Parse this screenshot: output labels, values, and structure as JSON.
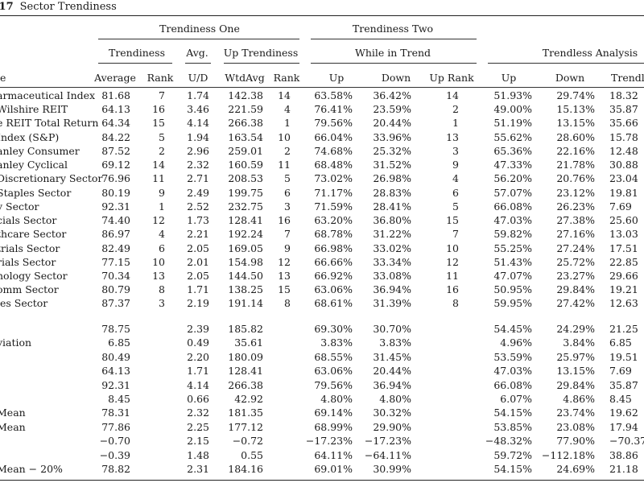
{
  "caption": {
    "number": ".17",
    "title": "Sector Trendiness"
  },
  "groups": {
    "one": "Trendiness One",
    "two": "Trendiness Two",
    "three": "Trendless Analysis"
  },
  "subgroups": {
    "trendiness": "Trendiness",
    "avg": "Avg.",
    "up_trendiness": "Up Trendiness",
    "while_in_trend": "While in Trend"
  },
  "columns": {
    "name": "e",
    "average": "Average",
    "rank": "Rank",
    "ud": "U/D",
    "wtdavg": "WtdAvg",
    "rank2": "Rank",
    "up": "Up",
    "down": "Down",
    "up_rank": "Up Rank",
    "up2": "Up",
    "down2": "Down",
    "trendless": "Trendle"
  },
  "rows": [
    [
      "armaceutical Index",
      "81.68",
      "7",
      "1.74",
      "142.38",
      "14",
      "63.58%",
      "36.42%",
      "14",
      "51.93%",
      "29.74%",
      "18.32"
    ],
    [
      "Wilshire REIT",
      "64.13",
      "16",
      "3.46",
      "221.59",
      "4",
      "76.41%",
      "23.59%",
      "2",
      "49.00%",
      "15.13%",
      "35.87"
    ],
    [
      "e REIT Total Return",
      "64.34",
      "15",
      "4.14",
      "266.38",
      "1",
      "79.56%",
      "20.44%",
      "1",
      "51.19%",
      "13.15%",
      "35.66"
    ],
    [
      "Index (S&P)",
      "84.22",
      "5",
      "1.94",
      "163.54",
      "10",
      "66.04%",
      "33.96%",
      "13",
      "55.62%",
      "28.60%",
      "15.78"
    ],
    [
      "anley Consumer",
      "87.52",
      "2",
      "2.96",
      "259.01",
      "2",
      "74.68%",
      "25.32%",
      "3",
      "65.36%",
      "22.16%",
      "12.48"
    ],
    [
      "anley Cyclical",
      "69.12",
      "14",
      "2.32",
      "160.59",
      "11",
      "68.48%",
      "31.52%",
      "9",
      "47.33%",
      "21.78%",
      "30.88"
    ],
    [
      "Discretionary Sector",
      "76.96",
      "11",
      "2.71",
      "208.53",
      "5",
      "73.02%",
      "26.98%",
      "4",
      "56.20%",
      "20.76%",
      "23.04"
    ],
    [
      "Staples Sector",
      "80.19",
      "9",
      "2.49",
      "199.75",
      "6",
      "71.17%",
      "28.83%",
      "6",
      "57.07%",
      "23.12%",
      "19.81"
    ],
    [
      "y Sector",
      "92.31",
      "1",
      "2.52",
      "232.75",
      "3",
      "71.59%",
      "28.41%",
      "5",
      "66.08%",
      "26.23%",
      "7.69"
    ],
    [
      "cials Sector",
      "74.40",
      "12",
      "1.73",
      "128.41",
      "16",
      "63.20%",
      "36.80%",
      "15",
      "47.03%",
      "27.38%",
      "25.60"
    ],
    [
      "thcare Sector",
      "86.97",
      "4",
      "2.21",
      "192.24",
      "7",
      "68.78%",
      "31.22%",
      "7",
      "59.82%",
      "27.16%",
      "13.03"
    ],
    [
      "trials Sector",
      "82.49",
      "6",
      "2.05",
      "169.05",
      "9",
      "66.98%",
      "33.02%",
      "10",
      "55.25%",
      "27.24%",
      "17.51"
    ],
    [
      "rials Sector",
      "77.15",
      "10",
      "2.01",
      "154.98",
      "12",
      "66.66%",
      "33.34%",
      "12",
      "51.43%",
      "25.72%",
      "22.85"
    ],
    [
      "nology Sector",
      "70.34",
      "13",
      "2.05",
      "144.50",
      "13",
      "66.92%",
      "33.08%",
      "11",
      "47.07%",
      "23.27%",
      "29.66"
    ],
    [
      "omm Sector",
      "80.79",
      "8",
      "1.71",
      "138.25",
      "15",
      "63.06%",
      "36.94%",
      "16",
      "50.95%",
      "29.84%",
      "19.21"
    ],
    [
      "ies Sector",
      "87.37",
      "3",
      "2.19",
      "191.14",
      "8",
      "68.61%",
      "31.39%",
      "8",
      "59.95%",
      "27.42%",
      "12.63"
    ]
  ],
  "summary": [
    [
      "",
      "78.75",
      "",
      "2.39",
      "185.82",
      "",
      "69.30%",
      "30.70%",
      "",
      "54.45%",
      "24.29%",
      "21.25"
    ],
    [
      "viation",
      "6.85",
      "",
      "0.49",
      "35.61",
      "",
      "3.83%",
      "3.83%",
      "",
      "4.96%",
      "3.84%",
      "6.85"
    ],
    [
      "",
      "80.49",
      "",
      "2.20",
      "180.09",
      "",
      "68.55%",
      "31.45%",
      "",
      "53.59%",
      "25.97%",
      "19.51"
    ],
    [
      "",
      "64.13",
      "",
      "1.71",
      "128.41",
      "",
      "63.06%",
      "20.44%",
      "",
      "47.03%",
      "13.15%",
      "7.69"
    ],
    [
      "",
      "92.31",
      "",
      "4.14",
      "266.38",
      "",
      "79.56%",
      "36.94%",
      "",
      "66.08%",
      "29.84%",
      "35.87"
    ],
    [
      "",
      "8.45",
      "",
      "0.66",
      "42.92",
      "",
      "4.80%",
      "4.80%",
      "",
      "6.07%",
      "4.86%",
      "8.45"
    ],
    [
      "Mean",
      "78.31",
      "",
      "2.32",
      "181.35",
      "",
      "69.14%",
      "30.32%",
      "",
      "54.15%",
      "23.74%",
      "19.62"
    ],
    [
      "Mean",
      "77.86",
      "",
      "2.25",
      "177.12",
      "",
      "68.99%",
      "29.90%",
      "",
      "53.85%",
      "23.08%",
      "17.94"
    ],
    [
      "",
      "−0.70",
      "",
      "2.15",
      "−0.72",
      "",
      "−17.23%",
      "−17.23%",
      "",
      "−48.32%",
      "77.90%",
      "−70.37"
    ],
    [
      "",
      "−0.39",
      "",
      "1.48",
      "0.55",
      "",
      "64.11%",
      "−64.11%",
      "",
      "59.72%",
      "−112.18%",
      "38.86"
    ],
    [
      "Mean − 20%",
      "78.82",
      "",
      "2.31",
      "184.16",
      "",
      "69.01%",
      "30.99%",
      "",
      "54.15%",
      "24.69%",
      "21.18"
    ]
  ]
}
